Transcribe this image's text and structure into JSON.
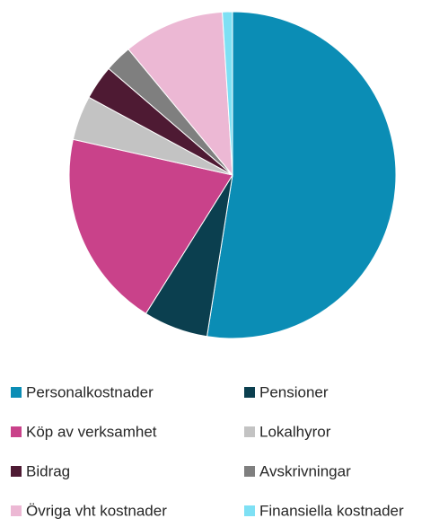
{
  "chart_data": {
    "type": "pie",
    "categories": [
      "Personalkostnader",
      "Pensioner",
      "Köp av verksamhet",
      "Lokalhyror",
      "Bidrag",
      "Avskrivningar",
      "Övriga vht kostnader",
      "Finansiella kostnader"
    ],
    "values": [
      52.5,
      6.4,
      19.6,
      4.4,
      3.4,
      2.7,
      10,
      1
    ],
    "colors": [
      "#0b8db5",
      "#0b3f4f",
      "#c9428a",
      "#c3c3c3",
      "#4e1a33",
      "#7f7f7f",
      "#ecb8d4",
      "#7ee0f4"
    ],
    "legend": "bottom"
  }
}
